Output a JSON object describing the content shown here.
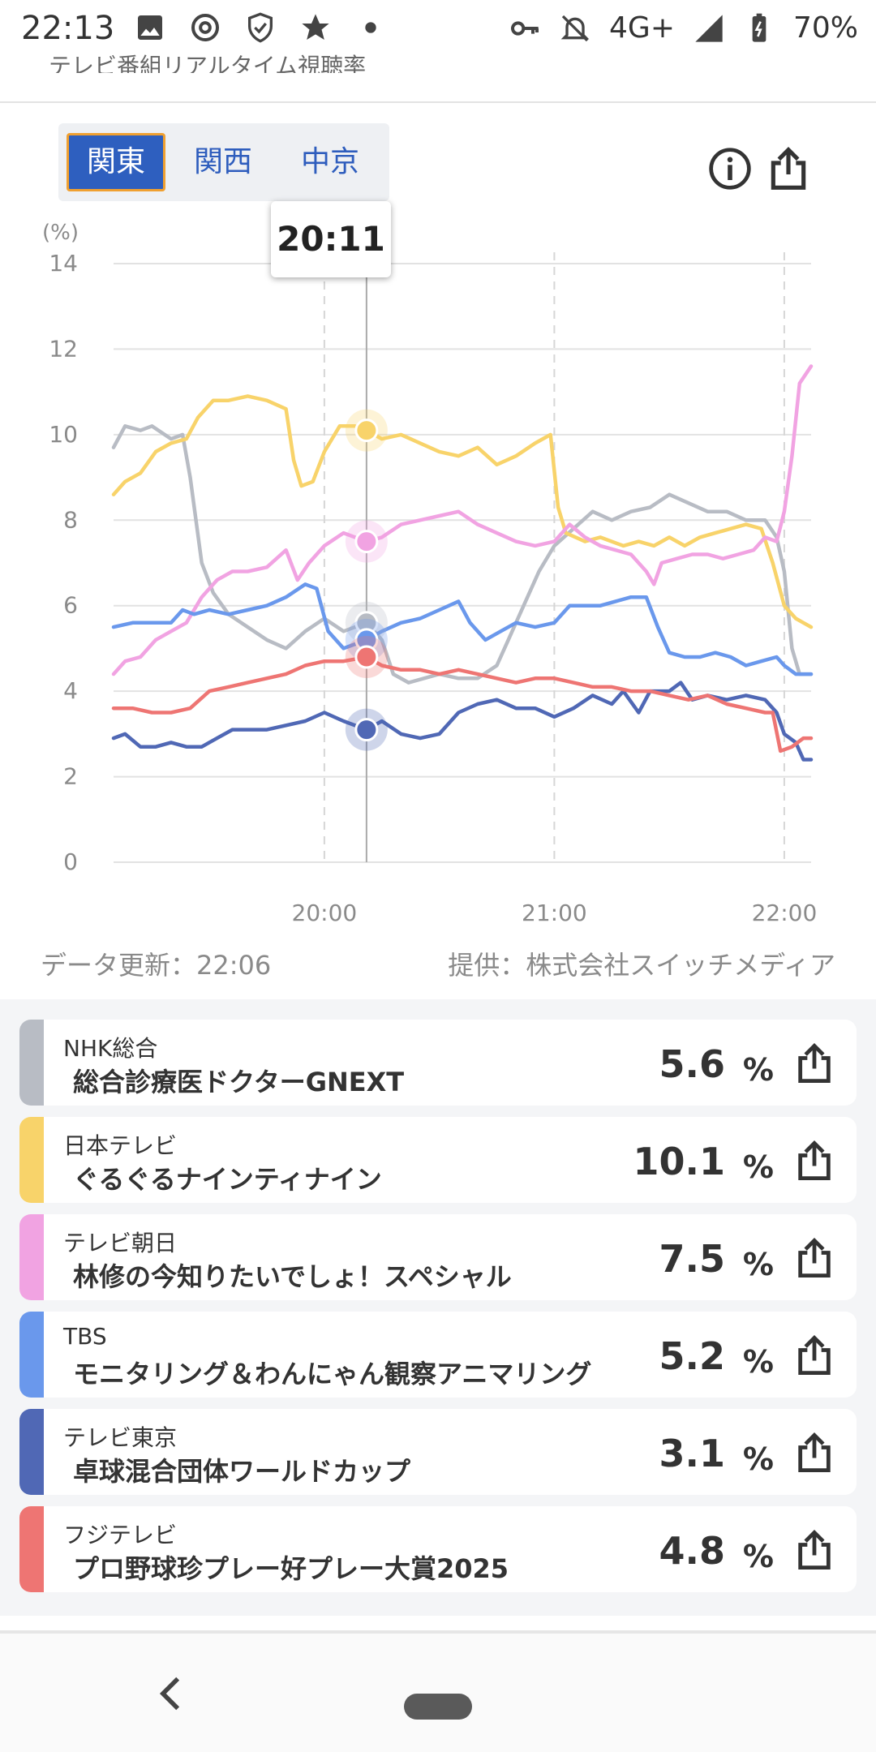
{
  "status_bar": {
    "time": "22:13",
    "network": "4G+",
    "battery": "70%",
    "icons_left": [
      "gallery-icon",
      "threads-icon",
      "shield-icon",
      "star-icon",
      "dot-icon"
    ],
    "icons_right": [
      "key-icon",
      "bell-off-icon",
      "signal-icon",
      "battery-icon"
    ]
  },
  "header": {
    "cropped_title": "テレビ番組リアルタイム視聴率"
  },
  "region_tabs": [
    {
      "label": "関東",
      "active": true
    },
    {
      "label": "関西",
      "active": false
    },
    {
      "label": "中京",
      "active": false
    }
  ],
  "tooltip": {
    "time": "20:11"
  },
  "meta": {
    "updated": "データ更新：22:06",
    "provider": "提供：株式会社スイッチメディア"
  },
  "chart_data": {
    "type": "line",
    "ylabel": "(%)",
    "ylim": [
      0,
      14
    ],
    "yticks": [
      "0",
      "2",
      "4",
      "6",
      "8",
      "10",
      "12",
      "14"
    ],
    "xlim": [
      "19:05",
      "22:07"
    ],
    "xticks": [
      {
        "t": "20:00",
        "label": "20:00"
      },
      {
        "t": "21:00",
        "label": "21:00"
      },
      {
        "t": "22:00",
        "label": "22:00"
      }
    ],
    "cursor": "20:11",
    "grid": true,
    "series": [
      {
        "name": "NHK総合",
        "color": "#b8bcc4",
        "points": [
          [
            "19:05",
            9.7
          ],
          [
            "19:08",
            10.2
          ],
          [
            "19:12",
            10.1
          ],
          [
            "19:15",
            10.2
          ],
          [
            "19:20",
            9.9
          ],
          [
            "19:23",
            10.0
          ],
          [
            "19:25",
            9.0
          ],
          [
            "19:28",
            7.0
          ],
          [
            "19:31",
            6.3
          ],
          [
            "19:35",
            5.8
          ],
          [
            "19:40",
            5.5
          ],
          [
            "19:45",
            5.2
          ],
          [
            "19:50",
            5.0
          ],
          [
            "19:55",
            5.4
          ],
          [
            "20:00",
            5.7
          ],
          [
            "20:05",
            5.4
          ],
          [
            "20:11",
            5.6
          ],
          [
            "20:15",
            5.2
          ],
          [
            "20:18",
            4.4
          ],
          [
            "20:22",
            4.2
          ],
          [
            "20:30",
            4.4
          ],
          [
            "20:35",
            4.3
          ],
          [
            "20:40",
            4.3
          ],
          [
            "20:45",
            4.6
          ],
          [
            "20:48",
            5.2
          ],
          [
            "20:52",
            6.0
          ],
          [
            "20:56",
            6.8
          ],
          [
            "21:00",
            7.4
          ],
          [
            "21:05",
            7.8
          ],
          [
            "21:10",
            8.2
          ],
          [
            "21:15",
            8.0
          ],
          [
            "21:20",
            8.2
          ],
          [
            "21:25",
            8.3
          ],
          [
            "21:30",
            8.6
          ],
          [
            "21:35",
            8.4
          ],
          [
            "21:40",
            8.2
          ],
          [
            "21:45",
            8.2
          ],
          [
            "21:50",
            8.0
          ],
          [
            "21:55",
            8.0
          ],
          [
            "21:58",
            7.6
          ],
          [
            "22:00",
            6.8
          ],
          [
            "22:02",
            5.0
          ],
          [
            "22:04",
            4.4
          ],
          [
            "22:07",
            4.4
          ]
        ]
      },
      {
        "name": "日本テレビ",
        "color": "#f8d36a",
        "points": [
          [
            "19:05",
            8.6
          ],
          [
            "19:08",
            8.9
          ],
          [
            "19:12",
            9.1
          ],
          [
            "19:16",
            9.6
          ],
          [
            "19:20",
            9.8
          ],
          [
            "19:24",
            9.9
          ],
          [
            "19:27",
            10.4
          ],
          [
            "19:31",
            10.8
          ],
          [
            "19:35",
            10.8
          ],
          [
            "19:40",
            10.9
          ],
          [
            "19:45",
            10.8
          ],
          [
            "19:50",
            10.6
          ],
          [
            "19:52",
            9.4
          ],
          [
            "19:54",
            8.8
          ],
          [
            "19:57",
            8.9
          ],
          [
            "20:00",
            9.6
          ],
          [
            "20:04",
            10.2
          ],
          [
            "20:08",
            10.2
          ],
          [
            "20:11",
            10.1
          ],
          [
            "20:15",
            9.9
          ],
          [
            "20:20",
            10.0
          ],
          [
            "20:25",
            9.8
          ],
          [
            "20:30",
            9.6
          ],
          [
            "20:35",
            9.5
          ],
          [
            "20:40",
            9.7
          ],
          [
            "20:45",
            9.3
          ],
          [
            "20:50",
            9.5
          ],
          [
            "20:55",
            9.8
          ],
          [
            "20:59",
            10.0
          ],
          [
            "21:01",
            8.3
          ],
          [
            "21:03",
            7.7
          ],
          [
            "21:08",
            7.5
          ],
          [
            "21:12",
            7.6
          ],
          [
            "21:18",
            7.4
          ],
          [
            "21:22",
            7.5
          ],
          [
            "21:26",
            7.4
          ],
          [
            "21:30",
            7.6
          ],
          [
            "21:34",
            7.4
          ],
          [
            "21:38",
            7.6
          ],
          [
            "21:42",
            7.7
          ],
          [
            "21:46",
            7.8
          ],
          [
            "21:50",
            7.9
          ],
          [
            "21:54",
            7.8
          ],
          [
            "21:57",
            7.0
          ],
          [
            "22:00",
            6.0
          ],
          [
            "22:03",
            5.7
          ],
          [
            "22:05",
            5.6
          ],
          [
            "22:07",
            5.5
          ]
        ]
      },
      {
        "name": "テレビ朝日",
        "color": "#f1a3e2",
        "points": [
          [
            "19:05",
            4.4
          ],
          [
            "19:08",
            4.7
          ],
          [
            "19:12",
            4.8
          ],
          [
            "19:16",
            5.2
          ],
          [
            "19:20",
            5.4
          ],
          [
            "19:24",
            5.6
          ],
          [
            "19:28",
            6.2
          ],
          [
            "19:32",
            6.6
          ],
          [
            "19:36",
            6.8
          ],
          [
            "19:40",
            6.8
          ],
          [
            "19:45",
            6.9
          ],
          [
            "19:50",
            7.3
          ],
          [
            "19:53",
            6.6
          ],
          [
            "19:56",
            7.0
          ],
          [
            "20:00",
            7.4
          ],
          [
            "20:05",
            7.7
          ],
          [
            "20:11",
            7.5
          ],
          [
            "20:15",
            7.6
          ],
          [
            "20:20",
            7.9
          ],
          [
            "20:25",
            8.0
          ],
          [
            "20:30",
            8.1
          ],
          [
            "20:35",
            8.2
          ],
          [
            "20:40",
            7.9
          ],
          [
            "20:45",
            7.7
          ],
          [
            "20:50",
            7.5
          ],
          [
            "20:55",
            7.4
          ],
          [
            "21:00",
            7.5
          ],
          [
            "21:04",
            7.9
          ],
          [
            "21:08",
            7.6
          ],
          [
            "21:12",
            7.4
          ],
          [
            "21:16",
            7.3
          ],
          [
            "21:20",
            7.2
          ],
          [
            "21:24",
            6.8
          ],
          [
            "21:26",
            6.5
          ],
          [
            "21:28",
            7.0
          ],
          [
            "21:32",
            7.1
          ],
          [
            "21:36",
            7.2
          ],
          [
            "21:40",
            7.2
          ],
          [
            "21:44",
            7.1
          ],
          [
            "21:48",
            7.2
          ],
          [
            "21:52",
            7.3
          ],
          [
            "21:55",
            7.6
          ],
          [
            "21:58",
            7.5
          ],
          [
            "22:00",
            8.2
          ],
          [
            "22:02",
            9.5
          ],
          [
            "22:04",
            11.2
          ],
          [
            "22:07",
            11.6
          ]
        ]
      },
      {
        "name": "TBS",
        "color": "#6a98ec",
        "points": [
          [
            "19:05",
            5.5
          ],
          [
            "19:10",
            5.6
          ],
          [
            "19:15",
            5.6
          ],
          [
            "19:20",
            5.6
          ],
          [
            "19:23",
            5.9
          ],
          [
            "19:26",
            5.8
          ],
          [
            "19:30",
            5.9
          ],
          [
            "19:35",
            5.8
          ],
          [
            "19:40",
            5.9
          ],
          [
            "19:45",
            6.0
          ],
          [
            "19:50",
            6.2
          ],
          [
            "19:55",
            6.5
          ],
          [
            "19:58",
            6.4
          ],
          [
            "20:01",
            5.4
          ],
          [
            "20:05",
            5.0
          ],
          [
            "20:11",
            5.2
          ],
          [
            "20:15",
            5.4
          ],
          [
            "20:20",
            5.6
          ],
          [
            "20:25",
            5.7
          ],
          [
            "20:30",
            5.9
          ],
          [
            "20:35",
            6.1
          ],
          [
            "20:38",
            5.6
          ],
          [
            "20:42",
            5.2
          ],
          [
            "20:46",
            5.4
          ],
          [
            "20:50",
            5.6
          ],
          [
            "20:55",
            5.5
          ],
          [
            "21:00",
            5.6
          ],
          [
            "21:04",
            6.0
          ],
          [
            "21:08",
            6.0
          ],
          [
            "21:12",
            6.0
          ],
          [
            "21:16",
            6.1
          ],
          [
            "21:20",
            6.2
          ],
          [
            "21:24",
            6.2
          ],
          [
            "21:27",
            5.5
          ],
          [
            "21:30",
            4.9
          ],
          [
            "21:34",
            4.8
          ],
          [
            "21:38",
            4.8
          ],
          [
            "21:42",
            4.9
          ],
          [
            "21:46",
            4.8
          ],
          [
            "21:50",
            4.6
          ],
          [
            "21:54",
            4.7
          ],
          [
            "21:58",
            4.8
          ],
          [
            "22:00",
            4.6
          ],
          [
            "22:03",
            4.4
          ],
          [
            "22:07",
            4.4
          ]
        ]
      },
      {
        "name": "テレビ東京",
        "color": "#5068b5",
        "points": [
          [
            "19:05",
            2.9
          ],
          [
            "19:08",
            3.0
          ],
          [
            "19:12",
            2.7
          ],
          [
            "19:16",
            2.7
          ],
          [
            "19:20",
            2.8
          ],
          [
            "19:24",
            2.7
          ],
          [
            "19:28",
            2.7
          ],
          [
            "19:32",
            2.9
          ],
          [
            "19:36",
            3.1
          ],
          [
            "19:40",
            3.1
          ],
          [
            "19:45",
            3.1
          ],
          [
            "19:50",
            3.2
          ],
          [
            "19:55",
            3.3
          ],
          [
            "20:00",
            3.5
          ],
          [
            "20:05",
            3.3
          ],
          [
            "20:11",
            3.1
          ],
          [
            "20:15",
            3.3
          ],
          [
            "20:20",
            3.0
          ],
          [
            "20:25",
            2.9
          ],
          [
            "20:30",
            3.0
          ],
          [
            "20:35",
            3.5
          ],
          [
            "20:40",
            3.7
          ],
          [
            "20:45",
            3.8
          ],
          [
            "20:50",
            3.6
          ],
          [
            "20:55",
            3.6
          ],
          [
            "21:00",
            3.4
          ],
          [
            "21:05",
            3.6
          ],
          [
            "21:10",
            3.9
          ],
          [
            "21:15",
            3.7
          ],
          [
            "21:18",
            4.0
          ],
          [
            "21:22",
            3.5
          ],
          [
            "21:25",
            4.0
          ],
          [
            "21:30",
            4.0
          ],
          [
            "21:33",
            4.2
          ],
          [
            "21:36",
            3.8
          ],
          [
            "21:40",
            3.9
          ],
          [
            "21:45",
            3.8
          ],
          [
            "21:50",
            3.9
          ],
          [
            "21:55",
            3.8
          ],
          [
            "21:58",
            3.5
          ],
          [
            "22:00",
            3.0
          ],
          [
            "22:03",
            2.8
          ],
          [
            "22:05",
            2.4
          ],
          [
            "22:07",
            2.4
          ]
        ]
      },
      {
        "name": "フジテレビ",
        "color": "#ee7573",
        "points": [
          [
            "19:05",
            3.6
          ],
          [
            "19:10",
            3.6
          ],
          [
            "19:15",
            3.5
          ],
          [
            "19:20",
            3.5
          ],
          [
            "19:25",
            3.6
          ],
          [
            "19:30",
            4.0
          ],
          [
            "19:35",
            4.1
          ],
          [
            "19:40",
            4.2
          ],
          [
            "19:45",
            4.3
          ],
          [
            "19:50",
            4.4
          ],
          [
            "19:55",
            4.6
          ],
          [
            "20:00",
            4.7
          ],
          [
            "20:05",
            4.7
          ],
          [
            "20:11",
            4.8
          ],
          [
            "20:15",
            4.6
          ],
          [
            "20:20",
            4.5
          ],
          [
            "20:25",
            4.5
          ],
          [
            "20:30",
            4.4
          ],
          [
            "20:35",
            4.5
          ],
          [
            "20:40",
            4.4
          ],
          [
            "20:45",
            4.3
          ],
          [
            "20:50",
            4.2
          ],
          [
            "20:55",
            4.3
          ],
          [
            "21:00",
            4.3
          ],
          [
            "21:05",
            4.2
          ],
          [
            "21:10",
            4.1
          ],
          [
            "21:15",
            4.1
          ],
          [
            "21:20",
            4.0
          ],
          [
            "21:25",
            4.0
          ],
          [
            "21:30",
            3.9
          ],
          [
            "21:35",
            3.8
          ],
          [
            "21:40",
            3.9
          ],
          [
            "21:45",
            3.7
          ],
          [
            "21:50",
            3.6
          ],
          [
            "21:55",
            3.5
          ],
          [
            "21:57",
            3.5
          ],
          [
            "21:59",
            2.6
          ],
          [
            "22:02",
            2.7
          ],
          [
            "22:05",
            2.9
          ],
          [
            "22:07",
            2.9
          ]
        ]
      }
    ]
  },
  "channels": [
    {
      "station": "NHK総合",
      "program": "総合診療医ドクターGNEXT",
      "value": "5.6",
      "unit": "%",
      "color": "#b8bcc4"
    },
    {
      "station": "日本テレビ",
      "program": "ぐるぐるナインティナイン",
      "value": "10.1",
      "unit": "%",
      "color": "#f8d36a"
    },
    {
      "station": "テレビ朝日",
      "program": "林修の今知りたいでしょ！スペシャル",
      "value": "7.5",
      "unit": "%",
      "color": "#f1a3e2"
    },
    {
      "station": "TBS",
      "program": "モニタリング＆わんにゃん観察アニマリング",
      "value": "5.2",
      "unit": "%",
      "color": "#6a98ec"
    },
    {
      "station": "テレビ東京",
      "program": "卓球混合団体ワールドカップ",
      "value": "3.1",
      "unit": "%",
      "color": "#5068b5"
    },
    {
      "station": "フジテレビ",
      "program": "プロ野球珍プレー好プレー大賞2025",
      "value": "4.8",
      "unit": "%",
      "color": "#ee7573"
    }
  ]
}
